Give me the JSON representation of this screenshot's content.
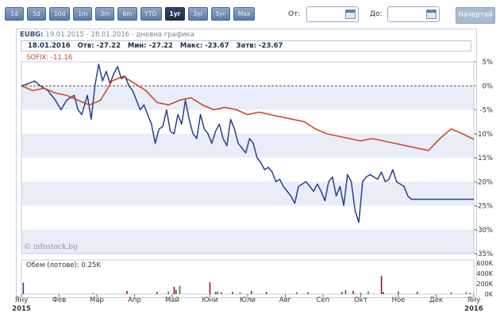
{
  "range_buttons": [
    "1d",
    "5d",
    "10d",
    "1m",
    "3m",
    "6m",
    "YTD",
    "1yr",
    "3yr",
    "5yr",
    "Max"
  ],
  "active_range": "1yr",
  "from_label": "От:",
  "to_label": "До:",
  "draw_button": "Начертай",
  "chart_title": {
    "symbol": "EUBG:",
    "rest": " 19.01.2015 - 18.01.2016 - дневна графика"
  },
  "info": {
    "date": "18.01.2016",
    "open_label": "Отв:",
    "open": "-27.22",
    "min_label": "Мин:",
    "min": "-27.22",
    "max_label": "Макс:",
    "max": "-23.67",
    "close_label": "Затв:",
    "close": "-23.67"
  },
  "sofix_label": "SOFIX: -11.16",
  "watermark": "© infostock.bg",
  "volume_label": "Обем (лотове): 0.25K",
  "colors": {
    "eubg": "#2b3f8c",
    "sofix": "#d43c1e",
    "volume_green": "#2a8a2a",
    "volume_red": "#8a1a28",
    "volume_blue": "#2b3f8c",
    "band": "#e8edf8"
  },
  "chart_data": {
    "type": "line",
    "x_labels": [
      "Яну\n2015",
      "Фев",
      "Мар",
      "Апр",
      "Май",
      "Юни",
      "Юли",
      "Авг",
      "Сеп",
      "Окт",
      "Ное",
      "Дек",
      "Яну\n2016"
    ],
    "ylim": [
      -35,
      5
    ],
    "yticks": [
      "5%",
      "0%",
      "-5%",
      "-10%",
      "-15%",
      "-20%",
      "-25%",
      "-30%",
      "-35%"
    ],
    "series": [
      {
        "name": "EUBG",
        "x": [
          0,
          0.2,
          0.35,
          0.5,
          0.7,
          0.9,
          1.05,
          1.2,
          1.4,
          1.5,
          1.6,
          1.75,
          1.85,
          1.95,
          2.05,
          2.15,
          2.25,
          2.35,
          2.45,
          2.55,
          2.65,
          2.75,
          2.85,
          2.95,
          3.05,
          3.15,
          3.25,
          3.35,
          3.45,
          3.55,
          3.65,
          3.75,
          3.85,
          3.95,
          4.05,
          4.15,
          4.25,
          4.35,
          4.45,
          4.55,
          4.65,
          4.75,
          4.85,
          4.95,
          5.05,
          5.15,
          5.25,
          5.35,
          5.45,
          5.55,
          5.65,
          5.75,
          5.85,
          5.95,
          6.05,
          6.15,
          6.25,
          6.35,
          6.45,
          6.55,
          6.65,
          6.75,
          6.85,
          6.95,
          7.05,
          7.15,
          7.25,
          7.35,
          7.45,
          7.55,
          7.65,
          7.75,
          7.85,
          7.95,
          8.05,
          8.15,
          8.25,
          8.35,
          8.45,
          8.55,
          8.65,
          8.75,
          8.85,
          8.95,
          9.05,
          9.15,
          9.25,
          9.35,
          9.45,
          9.55,
          9.65,
          9.75,
          9.85,
          9.95,
          10.05,
          10.15,
          10.25,
          10.35,
          10.45,
          10.55,
          10.65,
          10.75,
          10.85,
          10.95,
          11.05,
          11.15,
          11.25,
          11.35,
          11.45,
          11.55,
          11.65,
          11.75,
          11.85,
          11.95,
          12.0
        ],
        "y": [
          0,
          0.5,
          1.0,
          0.0,
          -1.0,
          -3.0,
          -5.0,
          -3.0,
          -2.0,
          -5.0,
          -6.0,
          -2.0,
          -7.0,
          0.0,
          4.5,
          1.0,
          3.0,
          0.5,
          2.5,
          4.0,
          1.5,
          2.0,
          0.0,
          -1.0,
          -3.0,
          -5.0,
          -4.0,
          -6.0,
          -8.0,
          -12.0,
          -9.0,
          -8.5,
          -5.0,
          -9.5,
          -10.0,
          -6.0,
          -8.0,
          -3.0,
          -7.0,
          -10.0,
          -11.0,
          -6.0,
          -9.0,
          -10.0,
          -12.0,
          -9.5,
          -8.0,
          -11.0,
          -12.5,
          -7.0,
          -9.0,
          -12.0,
          -13.0,
          -14.0,
          -11.0,
          -12.0,
          -15.0,
          -16.0,
          -17.5,
          -17.0,
          -18.0,
          -20.0,
          -19.5,
          -21.0,
          -22.0,
          -23.0,
          -24.5,
          -21.0,
          -20.5,
          -20.0,
          -21.0,
          -22.0,
          -20.5,
          -22.0,
          -24.0,
          -20.0,
          -19.0,
          -23.0,
          -21.0,
          -25.0,
          -18.5,
          -20.0,
          -26.0,
          -28.5,
          -20.0,
          -19.0,
          -18.5,
          -19.0,
          -19.5,
          -18.0,
          -20.0,
          -19.5,
          -17.5,
          -20.0,
          -20.5,
          -21.0,
          -23.0,
          -23.67,
          -23.67,
          -23.67,
          -23.67,
          -23.67,
          -23.67,
          -23.67,
          -23.67,
          -23.67,
          -23.67,
          -23.67,
          -23.67,
          -23.67,
          -23.67,
          -23.67,
          -23.67,
          -23.67,
          -23.67
        ]
      },
      {
        "name": "SOFIX",
        "x": [
          0,
          0.3,
          0.6,
          0.9,
          1.2,
          1.5,
          1.8,
          2.1,
          2.4,
          2.7,
          3.0,
          3.3,
          3.6,
          3.9,
          4.2,
          4.5,
          4.8,
          5.1,
          5.4,
          5.7,
          6.0,
          6.3,
          6.6,
          6.9,
          7.2,
          7.5,
          7.8,
          8.1,
          8.4,
          8.7,
          9.0,
          9.3,
          9.6,
          9.9,
          10.2,
          10.5,
          10.8,
          11.1,
          11.4,
          11.7,
          12.0
        ],
        "y": [
          0,
          -1.0,
          -0.5,
          -1.5,
          -2.0,
          -3.0,
          -4.0,
          -3.0,
          1.0,
          2.0,
          0.5,
          -1.0,
          -3.5,
          -4.0,
          -3.0,
          -2.5,
          -4.0,
          -5.0,
          -4.5,
          -5.0,
          -6.0,
          -5.5,
          -6.0,
          -6.5,
          -7.0,
          -7.5,
          -9.0,
          -10.0,
          -10.5,
          -11.0,
          -11.5,
          -11.0,
          -11.5,
          -12.0,
          -12.5,
          -13.0,
          -13.5,
          -11.0,
          -9.0,
          -10.0,
          -11.16
        ]
      }
    ],
    "volume": {
      "label": "Обем (лотове)",
      "ylim": [
        0,
        600000
      ],
      "yticks": [
        "600K",
        "400K",
        "200K",
        "0K"
      ],
      "x": [
        0.05,
        1.9,
        2.8,
        3.6,
        3.9,
        4.05,
        4.1,
        4.2,
        5.0,
        5.15,
        5.2,
        5.3,
        5.6,
        5.8,
        6.1,
        6.5,
        7.3,
        7.6,
        8.5,
        8.6,
        8.8,
        9.0,
        9.2,
        9.55,
        9.6,
        10.0,
        10.5,
        11.4,
        11.8,
        11.9
      ],
      "values": [
        220000,
        20000,
        60000,
        40000,
        50000,
        140000,
        80000,
        160000,
        230000,
        40000,
        50000,
        30000,
        40000,
        30000,
        60000,
        40000,
        30000,
        30000,
        40000,
        80000,
        60000,
        20000,
        50000,
        350000,
        40000,
        50000,
        40000,
        30000,
        40000,
        20000
      ]
    }
  }
}
